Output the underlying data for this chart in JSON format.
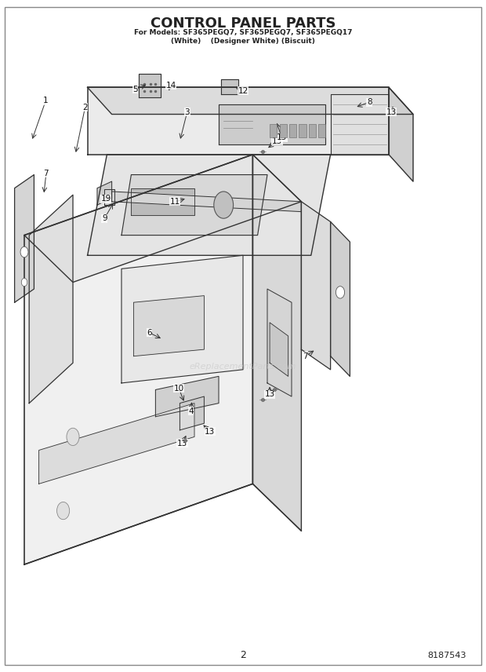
{
  "title_line1": "CONTROL PANEL PARTS",
  "title_line2": "For Models: SF365PEGQ7, SF365PEGQ7, SF365PEGQ17",
  "title_line3": "(White)    (Designer White) (Biscuit)",
  "page_number": "2",
  "part_number": "8187543",
  "watermark": "eReplacementParts.com",
  "background_color": "#ffffff",
  "line_color": "#333333",
  "title_color": "#222222"
}
